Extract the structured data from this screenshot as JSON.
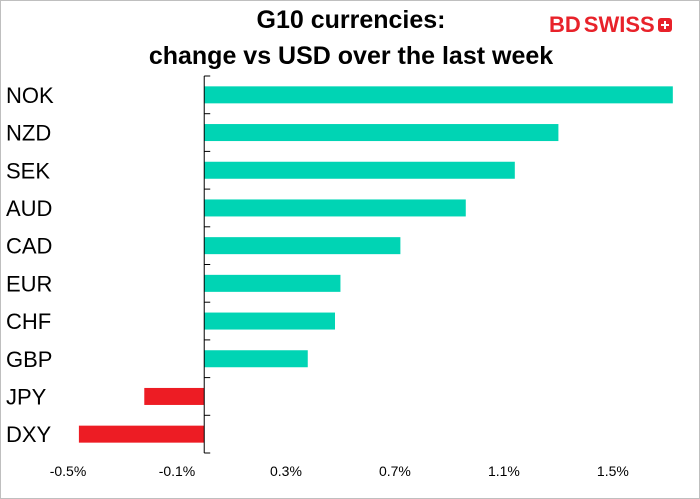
{
  "header": {
    "title_line1": "G10 currencies:",
    "title_line2": "change vs USD over the last week"
  },
  "logo": {
    "text_bd": "BD",
    "text_swiss": "SWISS"
  },
  "chart_data": {
    "type": "bar",
    "orientation": "horizontal",
    "title": "G10 currencies: change vs USD over the last week",
    "categories": [
      "NOK",
      "NZD",
      "SEK",
      "AUD",
      "CAD",
      "EUR",
      "CHF",
      "GBP",
      "JPY",
      "DXY"
    ],
    "values": [
      1.72,
      1.3,
      1.14,
      0.96,
      0.72,
      0.5,
      0.48,
      0.38,
      -0.22,
      -0.46
    ],
    "xlim": [
      -0.5,
      1.75
    ],
    "xticks": [
      -0.5,
      -0.1,
      0.3,
      0.7,
      1.1,
      1.5
    ],
    "xtick_labels": [
      "-0.5%",
      "-0.1%",
      "0.3%",
      "0.7%",
      "1.1%",
      "1.5%"
    ],
    "grid": false,
    "legend": "none",
    "colors": {
      "positive": "#00d4b4",
      "negative": "#ed1c24",
      "axis": "#000000"
    }
  }
}
